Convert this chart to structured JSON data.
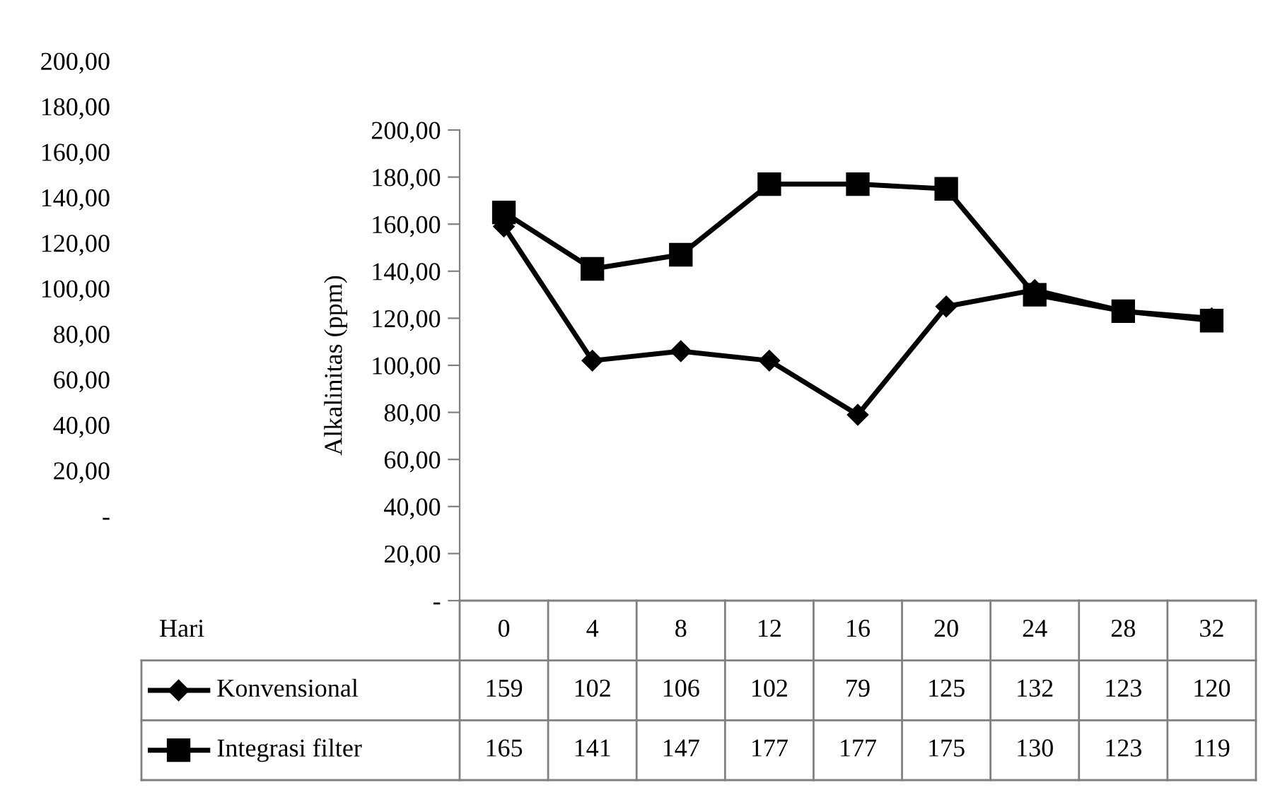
{
  "chart_data": {
    "type": "line",
    "ylabel": "Alkalinitas (ppm)",
    "annotations": [
      "200,00",
      "180,00",
      "160,00",
      "140,00",
      "120,00",
      "100,00",
      "80,00",
      "60,00",
      "40,00",
      "20,00",
      "-",
      "Hari"
    ],
    "categories": [
      "0",
      "4",
      "8",
      "12",
      "16",
      "20",
      "24",
      "28",
      "32"
    ],
    "series": [
      {
        "name": "Konvensional",
        "color": "#000000",
        "marker": "diamond",
        "values": [
          159,
          102,
          106,
          102,
          79,
          125,
          132,
          123,
          120
        ]
      },
      {
        "name": "Integrasi filter",
        "color": "#000000",
        "marker": "square",
        "values": [
          165,
          141,
          147,
          177,
          177,
          175,
          130,
          123,
          119
        ]
      }
    ],
    "ylim": [
      0,
      200
    ],
    "yticks": [
      {
        "value": 0,
        "label": "-"
      },
      {
        "value": 20,
        "label": "20,00"
      },
      {
        "value": 40,
        "label": "40,00"
      },
      {
        "value": 60,
        "label": "60,00"
      },
      {
        "value": 80,
        "label": "80,00"
      },
      {
        "value": 100,
        "label": "100,00"
      },
      {
        "value": 120,
        "label": "120,00"
      },
      {
        "value": 140,
        "label": "140,00"
      },
      {
        "value": 160,
        "label": "160,00"
      },
      {
        "value": 180,
        "label": "180,00"
      },
      {
        "value": 200,
        "label": "200,00"
      }
    ],
    "data_labels": true,
    "legend": "bottom",
    "grid": false,
    "line_style": "solid"
  }
}
